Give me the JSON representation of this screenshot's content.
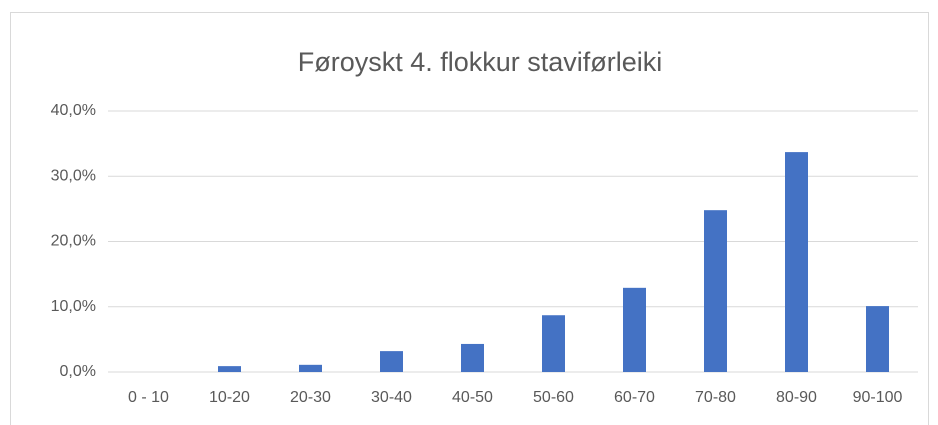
{
  "chart_data": {
    "type": "bar",
    "title": "Føroyskt 4. flokkur staviførleiki",
    "categories": [
      "0 - 10",
      "10-20",
      "20-30",
      "30-40",
      "40-50",
      "50-60",
      "60-70",
      "70-80",
      "80-90",
      "90-100"
    ],
    "values": [
      0,
      0.9,
      1.1,
      3.2,
      4.3,
      8.7,
      12.9,
      24.8,
      33.7,
      10.1
    ],
    "color": "#4472c4",
    "ylim": [
      0,
      40
    ],
    "yticks": [
      {
        "value": 0,
        "label": "0,0%"
      },
      {
        "value": 10,
        "label": "10,0%"
      },
      {
        "value": 20,
        "label": "20,0%"
      },
      {
        "value": 30,
        "label": "30,0%"
      },
      {
        "value": 40,
        "label": "40,0%"
      }
    ],
    "grid": true
  }
}
